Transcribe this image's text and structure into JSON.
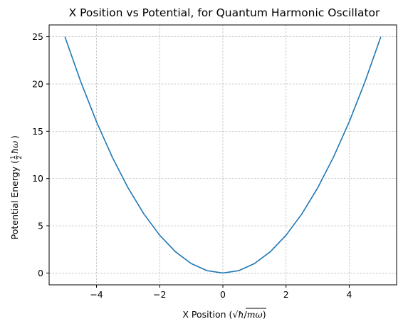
{
  "chart_data": {
    "type": "line",
    "title": "X Position vs Potential, for Quantum Harmonic Oscillator",
    "xlabel": {
      "prefix": "X Position (",
      "sqrt_symbol": "√",
      "hbar": "ħ",
      "slash": "/",
      "m_omega": "mω",
      "suffix": ")"
    },
    "ylabel": {
      "prefix": "Potential Energy (",
      "frac_num": "1",
      "frac_den": "2",
      "hbar_omega": "ħω",
      "suffix": ")"
    },
    "xlim": [
      -5.5,
      5.5
    ],
    "ylim": [
      -1.25,
      26.25
    ],
    "x_ticks": [
      -4,
      -2,
      0,
      2,
      4
    ],
    "x_tick_labels": [
      "−4",
      "−2",
      "0",
      "2",
      "4"
    ],
    "y_ticks": [
      0,
      5,
      10,
      15,
      20,
      25
    ],
    "y_tick_labels": [
      "0",
      "5",
      "10",
      "15",
      "20",
      "25"
    ],
    "grid": true,
    "line_color": "#1f77b4",
    "grid_color": "#b0b0b0",
    "series": [
      {
        "x": [
          -5,
          -4.5,
          -4,
          -3.5,
          -3,
          -2.5,
          -2,
          -1.5,
          -1,
          -0.5,
          0,
          0.5,
          1,
          1.5,
          2,
          2.5,
          3,
          3.5,
          4,
          4.5,
          5
        ],
        "y": [
          25,
          20.25,
          16,
          12.25,
          9,
          6.25,
          4,
          2.25,
          1,
          0.25,
          0,
          0.25,
          1,
          2.25,
          4,
          6.25,
          9,
          12.25,
          16,
          20.25,
          25
        ]
      }
    ]
  }
}
